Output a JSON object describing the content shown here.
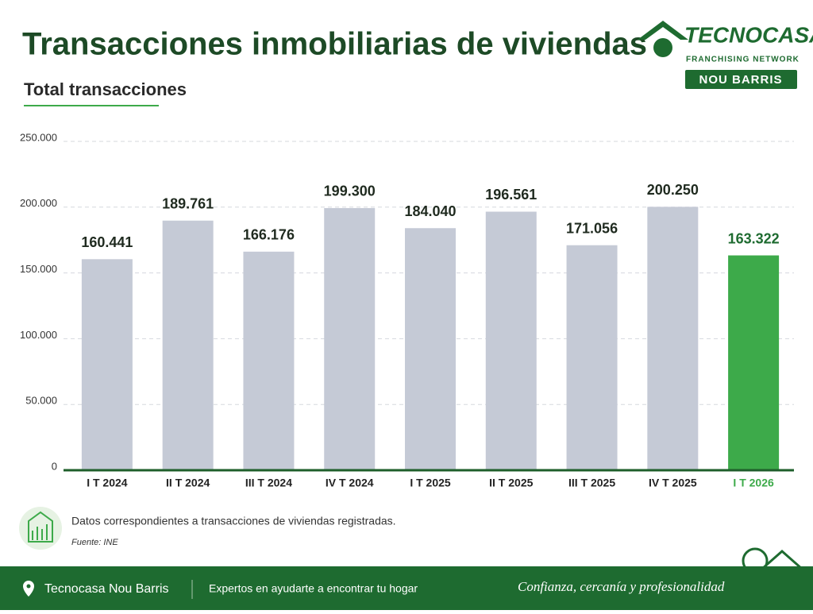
{
  "chart_data": {
    "type": "bar",
    "title": "Transacciones inmobiliarias de viviendas",
    "subtitle": "Total transacciones",
    "categories": [
      "I T 2024",
      "II T 2024",
      "III T 2024",
      "IV T 2024",
      "I T 2025",
      "II T 2025",
      "III T 2025",
      "IV T 2025",
      "I T 2026"
    ],
    "values": [
      160441,
      189761,
      166176,
      199300,
      184040,
      196561,
      171056,
      200250,
      163322
    ],
    "value_labels": [
      "160.441",
      "189.761",
      "166.176",
      "199.300",
      "184.040",
      "196.561",
      "171.056",
      "200.250",
      "163.322"
    ],
    "color": "#c5cad6",
    "colors": [
      "#c5cad6",
      "#c5cad6",
      "#c5cad6",
      "#c5cad6",
      "#c5cad6",
      "#c5cad6",
      "#c5cad6",
      "#c5cad6",
      "#3daa4a"
    ],
    "ylim": [
      0,
      250000
    ],
    "yticks": [
      0,
      {
        "value": 50000,
        "label": "50.000"
      },
      {
        "value": 100000,
        "label": "100.000"
      },
      {
        "value": 150000,
        "label": "150.000"
      },
      {
        "value": 200000,
        "label": "200.000"
      },
      {
        "value": 250000,
        "label": "250.000"
      }
    ],
    "grid": true
  },
  "logo": {
    "brand": "TECNOCASA",
    "tagline": "FRANCHISING NETWORK",
    "office": "NOU BARRIS"
  },
  "note": {
    "text": "Datos correspondientes a transacciones de viviendas registradas.",
    "source": "Fuente: INE"
  },
  "footer": {
    "office": "Tecnocasa Nou Barris",
    "claim": "Expertos en ayudarte a encontrar tu hogar",
    "slogan": "Confianza, cercanía y profesionalidad"
  }
}
